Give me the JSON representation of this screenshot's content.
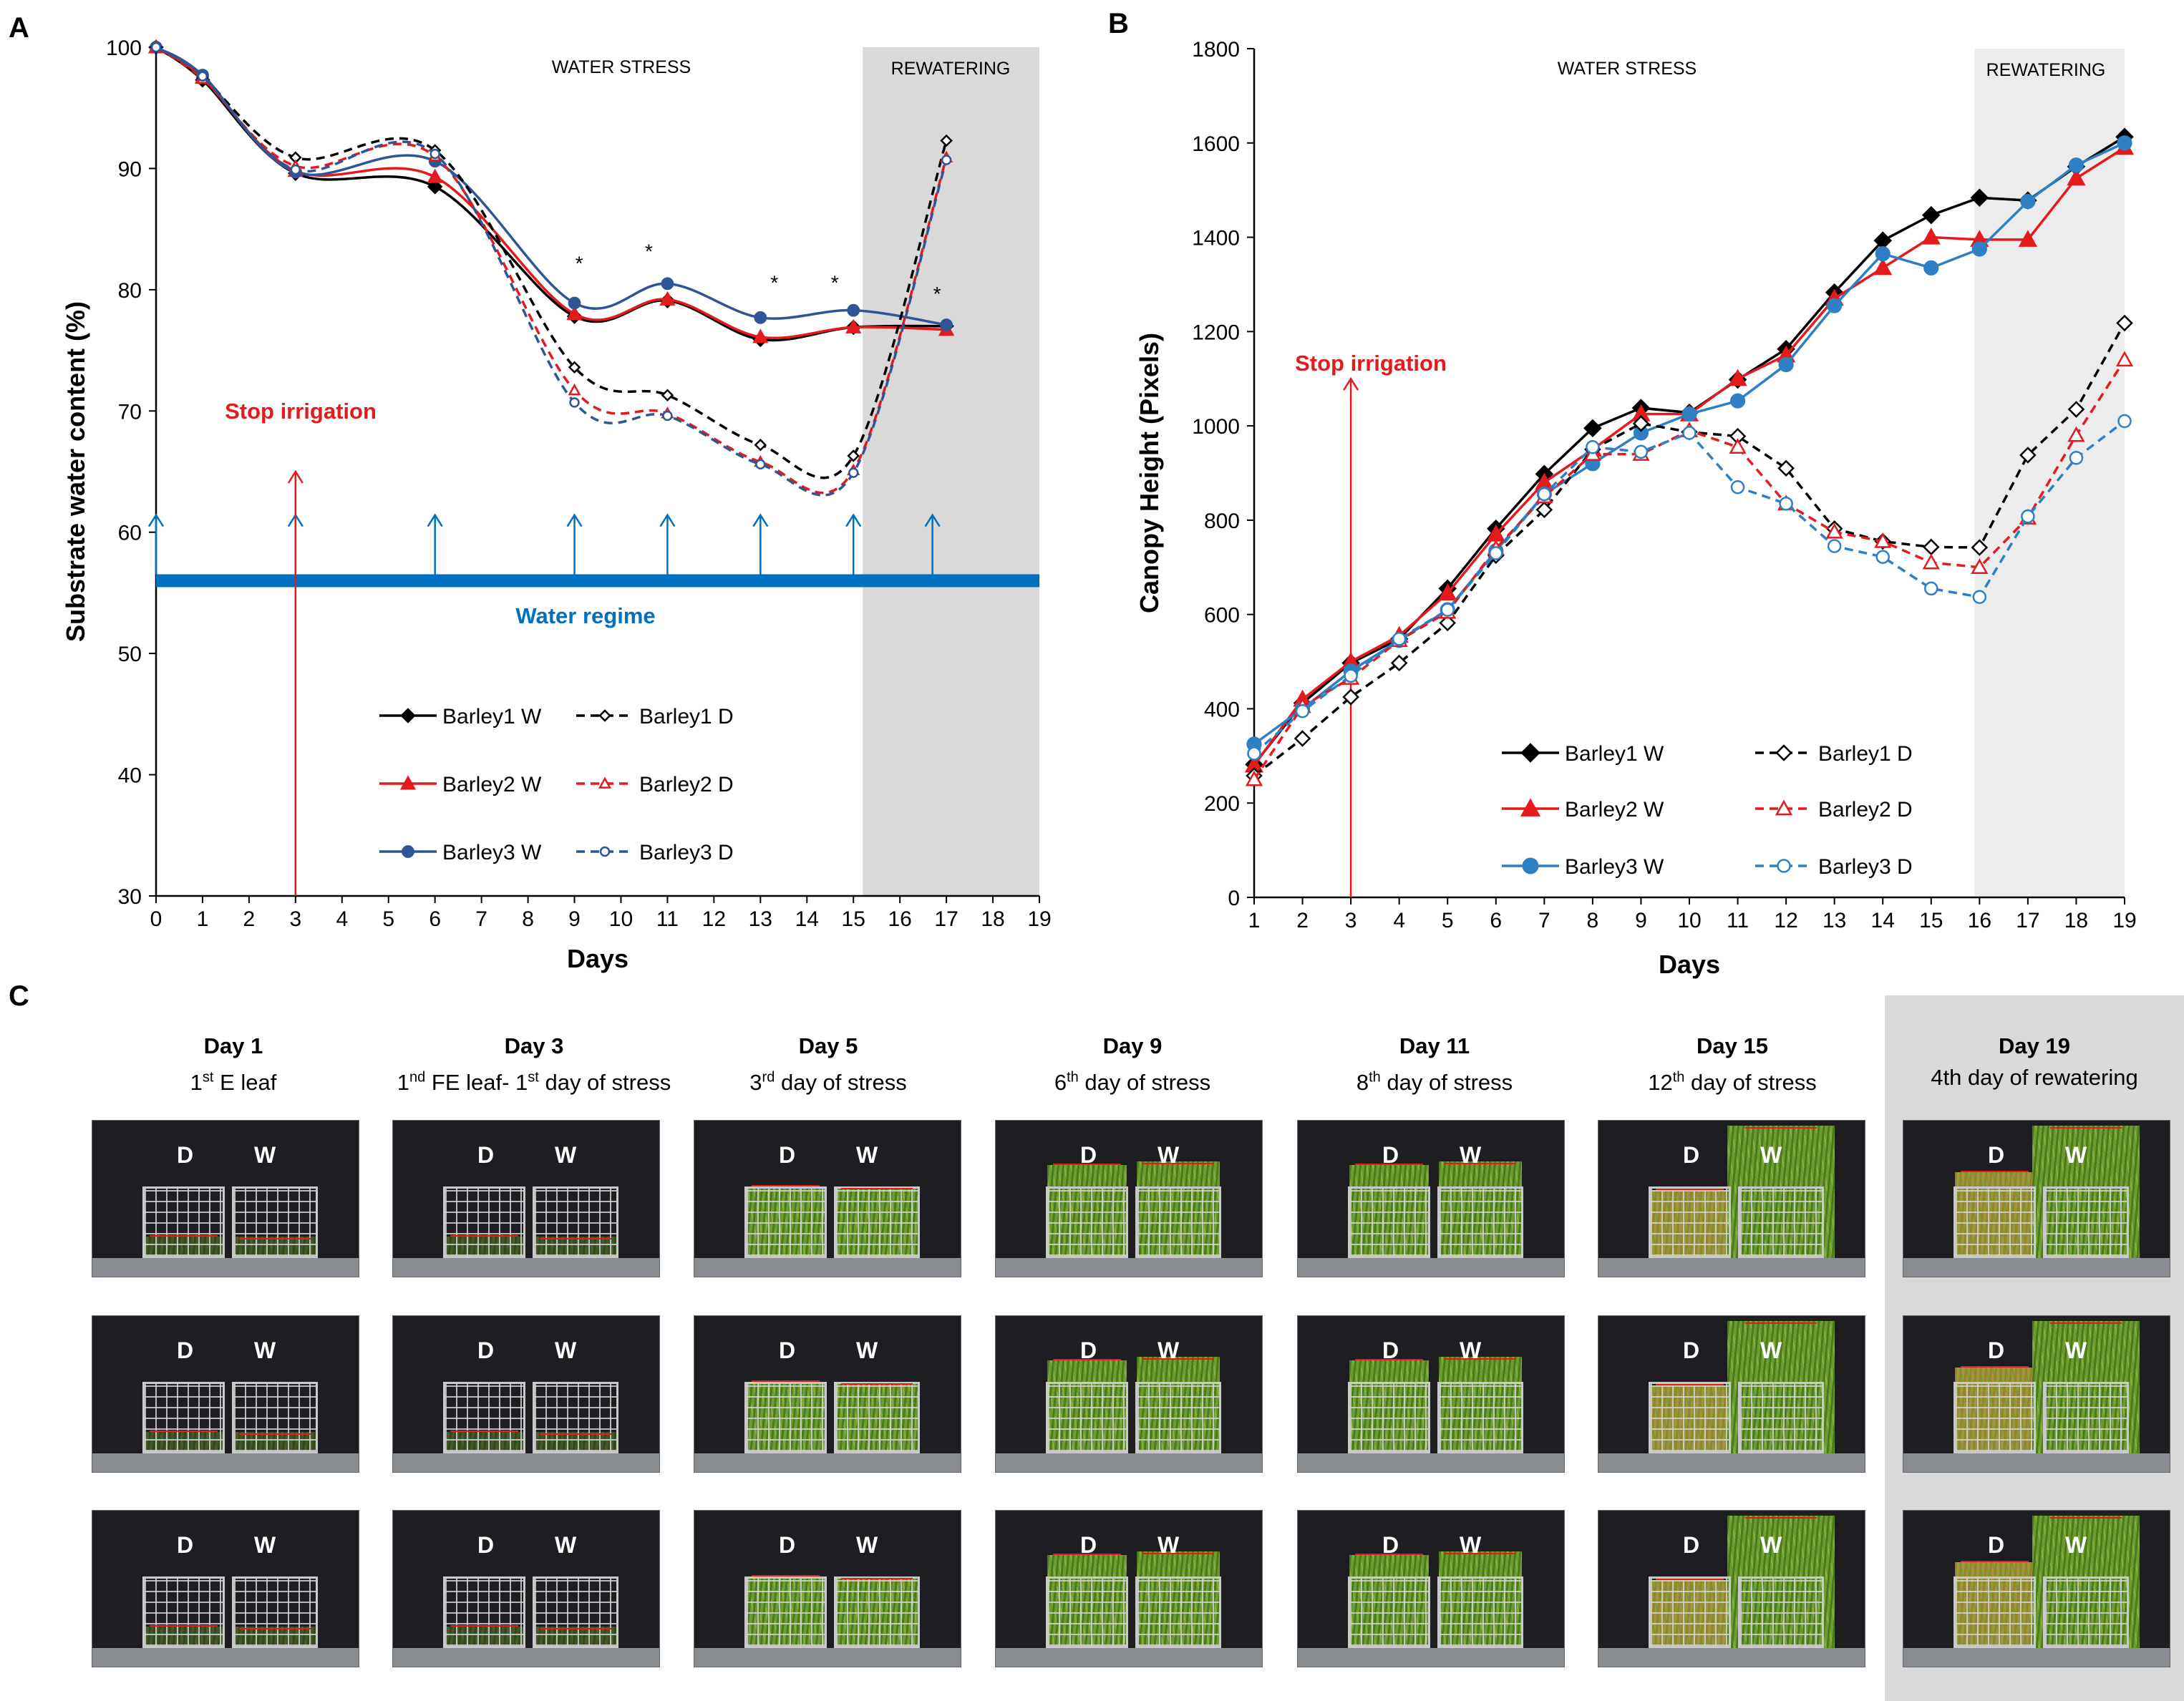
{
  "panel_labels": {
    "a": "A",
    "b": "B",
    "c": "C"
  },
  "chart_data": [
    {
      "type": "line",
      "panel": "A",
      "ylabel": "Substrate water content (%)",
      "xlabel": "Days",
      "xlim": [
        0,
        19
      ],
      "ylim": [
        30,
        100
      ],
      "x_ticks": [
        "0",
        "1",
        "2",
        "3",
        "4",
        "5",
        "6",
        "7",
        "8",
        "9",
        "10",
        "11",
        "12",
        "13",
        "14",
        "15",
        "16",
        "17",
        "18",
        "19"
      ],
      "y_ticks": [
        "30",
        "40",
        "50",
        "60",
        "70",
        "80",
        "90",
        "100"
      ],
      "region_water_stress": "WATER STRESS",
      "region_rewatering": "REWATERING",
      "rewatering_start": 15.2,
      "annotation_stop": "Stop irrigation",
      "stop_day": 3,
      "water_regime_label": "Water regime",
      "water_regime_level": 56,
      "watering_arrow_days": [
        0,
        3,
        6,
        9,
        11,
        13,
        15,
        16.7
      ],
      "significance_days": [
        9.1,
        10.6,
        13.3,
        14.6,
        16.8
      ],
      "significance_mark": "*",
      "series": [
        {
          "name": "Barley1 W",
          "color": "#000000",
          "dashed": false,
          "marker": "diamond",
          "filled": true,
          "x": [
            0,
            1,
            3,
            6,
            9,
            11,
            13,
            15,
            17
          ],
          "y": [
            100,
            97.3,
            89.6,
            88.5,
            77.8,
            79.1,
            75.9,
            76.9,
            77.0
          ]
        },
        {
          "name": "Barley2 W",
          "color": "#e41a1c",
          "dashed": false,
          "marker": "triangle",
          "filled": true,
          "x": [
            0,
            1,
            3,
            6,
            9,
            11,
            13,
            15,
            17
          ],
          "y": [
            100,
            97.5,
            89.8,
            89.3,
            78.0,
            79.2,
            76.1,
            76.9,
            76.7
          ]
        },
        {
          "name": "Barley3 W",
          "color": "#2f5597",
          "dashed": false,
          "marker": "circle",
          "filled": true,
          "x": [
            0,
            1,
            3,
            6,
            9,
            11,
            13,
            15,
            17
          ],
          "y": [
            100,
            97.7,
            89.7,
            90.6,
            78.9,
            80.5,
            77.7,
            78.3,
            77.1
          ]
        },
        {
          "name": "Barley1 D",
          "color": "#000000",
          "dashed": true,
          "marker": "diamond",
          "filled": false,
          "x": [
            0,
            1,
            3,
            6,
            9,
            11,
            13,
            15,
            17
          ],
          "y": [
            100,
            97.5,
            90.9,
            91.5,
            73.6,
            71.3,
            67.2,
            66.3,
            92.3
          ]
        },
        {
          "name": "Barley2 D",
          "color": "#e41a1c",
          "dashed": true,
          "marker": "triangle",
          "filled": false,
          "x": [
            0,
            1,
            3,
            6,
            9,
            11,
            13,
            15,
            17
          ],
          "y": [
            100,
            97.4,
            90.2,
            91.0,
            71.7,
            69.8,
            65.8,
            65.1,
            90.9
          ]
        },
        {
          "name": "Barley3 D",
          "color": "#2f5597",
          "dashed": true,
          "marker": "circle",
          "filled": false,
          "x": [
            0,
            1,
            3,
            6,
            9,
            11,
            13,
            15,
            17
          ],
          "y": [
            100,
            97.6,
            89.9,
            91.2,
            70.7,
            69.6,
            65.6,
            64.9,
            90.7
          ]
        }
      ]
    },
    {
      "type": "line",
      "panel": "B",
      "ylabel": "Canopy Height (Pixels)",
      "xlabel": "Days",
      "xlim": [
        1,
        19
      ],
      "ylim": [
        0,
        1800
      ],
      "x_ticks": [
        "1",
        "2",
        "3",
        "4",
        "5",
        "6",
        "7",
        "8",
        "9",
        "10",
        "11",
        "12",
        "13",
        "14",
        "15",
        "16",
        "17",
        "18",
        "19"
      ],
      "y_ticks": [
        "0",
        "200",
        "400",
        "600",
        "800",
        "1000",
        "1200",
        "1400",
        "1600",
        "1800"
      ],
      "region_water_stress": "WATER STRESS",
      "region_rewatering": "REWATERING",
      "rewatering_start": 15.9,
      "annotation_stop": "Stop irrigation",
      "stop_day": 3,
      "series": [
        {
          "name": "Barley1 W",
          "color": "#000000",
          "dashed": false,
          "marker": "diamond",
          "filled": true,
          "x": [
            1,
            2,
            3,
            4,
            5,
            6,
            7,
            8,
            9,
            10,
            11,
            12,
            13,
            14,
            15,
            16,
            17,
            18,
            19
          ],
          "y": [
            282,
            412,
            497,
            548,
            655,
            782,
            898,
            995,
            1038,
            1028,
            1098,
            1163,
            1283,
            1393,
            1447,
            1484,
            1478,
            1550,
            1613
          ]
        },
        {
          "name": "Barley2 W",
          "color": "#e41a1c",
          "dashed": false,
          "marker": "triangle",
          "filled": true,
          "x": [
            1,
            2,
            3,
            4,
            5,
            6,
            7,
            8,
            9,
            10,
            11,
            12,
            13,
            14,
            15,
            16,
            17,
            18,
            19
          ],
          "y": [
            280,
            420,
            500,
            555,
            645,
            770,
            880,
            950,
            1025,
            1025,
            1100,
            1150,
            1270,
            1335,
            1400,
            1395,
            1395,
            1525,
            1590
          ]
        },
        {
          "name": "Barley3 W",
          "color": "#2e7fc4",
          "dashed": false,
          "marker": "circle",
          "filled": true,
          "x": [
            1,
            2,
            3,
            4,
            5,
            6,
            7,
            8,
            9,
            10,
            11,
            12,
            13,
            14,
            15,
            16,
            17,
            18,
            19
          ],
          "y": [
            325,
            400,
            480,
            545,
            610,
            735,
            855,
            920,
            985,
            1025,
            1053,
            1130,
            1255,
            1365,
            1335,
            1375,
            1476,
            1553,
            1600
          ]
        },
        {
          "name": "Barley1 D",
          "color": "#000000",
          "dashed": true,
          "marker": "diamond",
          "filled": false,
          "x": [
            1,
            2,
            3,
            4,
            5,
            6,
            7,
            8,
            9,
            10,
            11,
            12,
            13,
            14,
            15,
            16,
            17,
            18,
            19
          ],
          "y": [
            258,
            337,
            425,
            497,
            582,
            725,
            822,
            950,
            1005,
            987,
            978,
            910,
            782,
            755,
            743,
            742,
            938,
            1035,
            1218
          ]
        },
        {
          "name": "Barley2 D",
          "color": "#e41a1c",
          "dashed": true,
          "marker": "triangle",
          "filled": false,
          "x": [
            1,
            2,
            3,
            4,
            5,
            6,
            7,
            8,
            9,
            10,
            11,
            12,
            13,
            14,
            15,
            16,
            17,
            18,
            19
          ],
          "y": [
            250,
            405,
            465,
            545,
            605,
            740,
            850,
            940,
            940,
            990,
            955,
            835,
            775,
            755,
            710,
            700,
            805,
            980,
            1140
          ]
        },
        {
          "name": "Barley3 D",
          "color": "#2e7fc4",
          "dashed": true,
          "marker": "circle",
          "filled": false,
          "x": [
            1,
            2,
            3,
            4,
            5,
            6,
            7,
            8,
            9,
            10,
            11,
            12,
            13,
            14,
            15,
            16,
            17,
            18,
            19
          ],
          "y": [
            305,
            395,
            470,
            548,
            610,
            730,
            855,
            955,
            945,
            985,
            870,
            835,
            745,
            722,
            655,
            637,
            808,
            932,
            1010
          ]
        }
      ]
    }
  ],
  "photo_panel": {
    "columns": [
      {
        "day": "Day 1",
        "ord": "1",
        "sup": "st",
        "rest": " E leaf",
        "stage": "early",
        "rewater": false
      },
      {
        "day": "Day 3",
        "ord": "1",
        "sup": "nd",
        "rest": " FE leaf- 1",
        "sup2": "st",
        "rest2": " day of stress",
        "stage": "early",
        "rewater": false
      },
      {
        "day": "Day 5",
        "ord": "3",
        "sup": "rd",
        "rest": " day of stress",
        "stage": "mid",
        "rewater": false
      },
      {
        "day": "Day 9",
        "ord": "6",
        "sup": "th",
        "rest": " day of stress",
        "stage": "tall",
        "rewater": false
      },
      {
        "day": "Day 11",
        "ord": "8",
        "sup": "th",
        "rest": " day of stress",
        "stage": "tall",
        "rewater": false
      },
      {
        "day": "Day 15",
        "ord": "12",
        "sup": "th",
        "rest": " day of stress",
        "stage": "split",
        "rewater": false
      },
      {
        "day": "Day 19",
        "ord": "4th day of rewatering",
        "sup": "",
        "rest": "",
        "stage": "rewater",
        "rewater": true
      }
    ],
    "label_d": "D",
    "label_w": "W",
    "rows": 3
  }
}
